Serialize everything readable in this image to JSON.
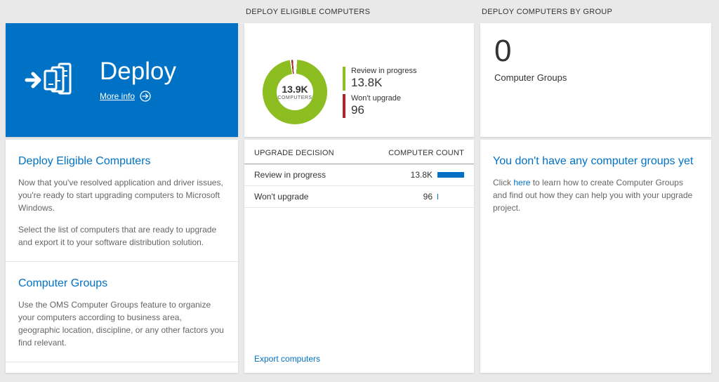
{
  "colors": {
    "accent_blue": "#0072c6",
    "donut_green": "#8cbe22",
    "donut_red": "#a6272c",
    "background": "#e9e9e9"
  },
  "left": {
    "tile": {
      "title": "Deploy",
      "more_info_label": "More info"
    },
    "sections": [
      {
        "heading": "Deploy Eligible Computers",
        "paragraphs": [
          "Now that you've resolved application and driver issues, you're ready to start upgrading computers to Microsoft Windows.",
          "Select the list of computers that are ready to upgrade and export it to your software distribution solution."
        ]
      },
      {
        "heading": "Computer Groups",
        "paragraphs": [
          "Use the OMS Computer Groups feature to organize your computers according to business area, geographic location, discipline, or any other factors you find relevant."
        ]
      }
    ]
  },
  "middle": {
    "header": "DEPLOY ELIGIBLE COMPUTERS",
    "table": {
      "columns": [
        "UPGRADE DECISION",
        "COMPUTER COUNT"
      ],
      "rows": [
        {
          "label": "Review in progress",
          "value": "13.8K",
          "bar_pct": 100
        },
        {
          "label": "Won't upgrade",
          "value": "96",
          "bar_pct": 3
        }
      ]
    },
    "footer_link": "Export computers"
  },
  "right": {
    "header": "DEPLOY COMPUTERS BY GROUP",
    "count": "0",
    "count_label": "Computer Groups",
    "empty_state": {
      "heading": "You don't have any computer groups yet",
      "text_before_link": "Click ",
      "link_text": "here",
      "text_after_link": " to learn how to create Computer Groups and find out how they can help you with your upgrade project."
    }
  },
  "chart_data": {
    "type": "pie",
    "title": "Deploy Eligible Computers",
    "center_value": "13.9K",
    "center_label": "COMPUTERS",
    "segments": [
      {
        "label": "Review in progress",
        "value": 13800,
        "display": "13.8K",
        "color": "#8cbe22"
      },
      {
        "label": "Won't upgrade",
        "value": 96,
        "display": "96",
        "color": "#a6272c"
      }
    ],
    "legend_position": "right"
  }
}
